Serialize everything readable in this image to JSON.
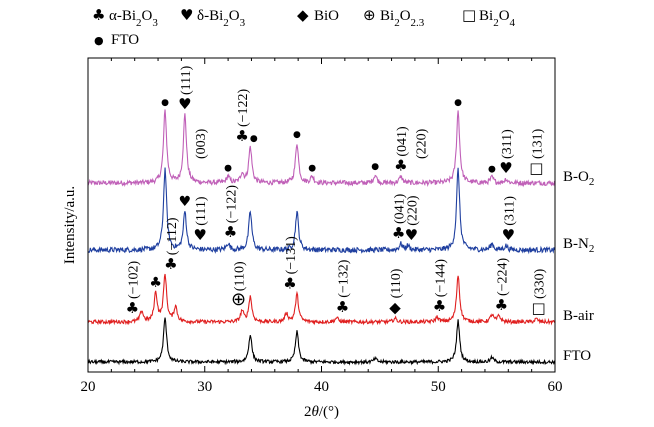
{
  "chart_data": {
    "type": "line",
    "xlabel": "2θ/(°)",
    "ylabel": "Intensity/a.u.",
    "xlim": [
      20,
      60
    ],
    "xticks": [
      20,
      30,
      40,
      50,
      60
    ],
    "grid": false,
    "legend": {
      "placement": "top",
      "items": [
        {
          "symbol": "♣",
          "label": "α-Bi₂O₃"
        },
        {
          "symbol": "♥",
          "label": "δ-Bi₂O₃"
        },
        {
          "symbol": "◆",
          "label": "BiO"
        },
        {
          "symbol": "⊕",
          "label": "Bi₂O₂.₃"
        },
        {
          "symbol": "□",
          "label": "Bi₂O₄"
        },
        {
          "symbol": "●",
          "label": "FTO"
        }
      ]
    },
    "series": [
      {
        "name": "B-O₂",
        "color": "#c060b8",
        "offset": 3.0,
        "peaks": [
          [
            26.6,
            0.9
          ],
          [
            28.3,
            0.85
          ],
          [
            32.0,
            0.08
          ],
          [
            33.2,
            0.12
          ],
          [
            33.9,
            0.45
          ],
          [
            37.9,
            0.5
          ],
          [
            39.2,
            0.08
          ],
          [
            44.6,
            0.1
          ],
          [
            46.8,
            0.08
          ],
          [
            51.7,
            0.9
          ],
          [
            54.6,
            0.07
          ],
          [
            55.8,
            0.05
          ]
        ]
      },
      {
        "name": "B-N₂",
        "color": "#2040a0",
        "offset": 2.0,
        "peaks": [
          [
            26.6,
            0.95
          ],
          [
            28.3,
            0.45
          ],
          [
            32.0,
            0.08
          ],
          [
            33.9,
            0.45
          ],
          [
            37.9,
            0.45
          ],
          [
            46.8,
            0.07
          ],
          [
            47.4,
            0.05
          ],
          [
            51.7,
            0.95
          ],
          [
            54.6,
            0.07
          ],
          [
            55.8,
            0.05
          ]
        ]
      },
      {
        "name": "B-air",
        "color": "#e02020",
        "offset": 1.0,
        "peaks": [
          [
            24.6,
            0.18
          ],
          [
            25.8,
            0.48
          ],
          [
            26.6,
            0.78
          ],
          [
            27.5,
            0.25
          ],
          [
            33.2,
            0.18
          ],
          [
            33.9,
            0.42
          ],
          [
            37.0,
            0.14
          ],
          [
            37.9,
            0.46
          ],
          [
            41.3,
            0.07
          ],
          [
            46.3,
            0.06
          ],
          [
            49.9,
            0.08
          ],
          [
            51.7,
            0.78
          ],
          [
            54.6,
            0.12
          ],
          [
            55.2,
            0.1
          ],
          [
            58.4,
            0.05
          ]
        ]
      },
      {
        "name": "FTO",
        "color": "#000000",
        "offset": 0.0,
        "peaks": [
          [
            26.6,
            0.8
          ],
          [
            33.9,
            0.5
          ],
          [
            37.9,
            0.55
          ],
          [
            44.6,
            0.06
          ],
          [
            51.7,
            0.75
          ],
          [
            54.6,
            0.08
          ]
        ]
      }
    ],
    "series_labels": [
      {
        "text": "B-O",
        "sub": "2",
        "series": 0
      },
      {
        "text": "B-N",
        "sub": "2",
        "series": 1
      },
      {
        "text": "B-air",
        "sub": "",
        "series": 2
      },
      {
        "text": "FTO",
        "sub": "",
        "series": 3
      }
    ],
    "annotations": [
      {
        "text": "(111)",
        "x": 28.3,
        "series": 0,
        "symbol": "♥"
      },
      {
        "text": "(003)",
        "x": 29.6,
        "series": 0,
        "symbol": ""
      },
      {
        "text": "(−122)",
        "x": 33.2,
        "series": 0,
        "symbol": "♣"
      },
      {
        "text": "(041)",
        "x": 46.8,
        "series": 0,
        "symbol": "♣"
      },
      {
        "text": "(220)",
        "x": 48.5,
        "series": 0,
        "symbol": ""
      },
      {
        "text": "(311)",
        "x": 55.8,
        "series": 0,
        "symbol": "♥"
      },
      {
        "text": "(131)",
        "x": 58.4,
        "series": 0,
        "symbol": "□"
      },
      {
        "text": "(111)",
        "x": 29.6,
        "series": 1,
        "symbol": "♥"
      },
      {
        "text": "(−122)",
        "x": 32.2,
        "series": 1,
        "symbol": "♣"
      },
      {
        "text": "(041)",
        "x": 46.6,
        "series": 1,
        "symbol": "♣"
      },
      {
        "text": "(220)",
        "x": 47.7,
        "series": 1,
        "symbol": "♥"
      },
      {
        "text": "(311)",
        "x": 56.0,
        "series": 1,
        "symbol": "♥"
      },
      {
        "text": "(−102)",
        "x": 23.8,
        "series": 2,
        "symbol": "♣"
      },
      {
        "text": "(−112)",
        "x": 27.1,
        "series": 2,
        "symbol": "♣"
      },
      {
        "text": "(110)",
        "x": 32.9,
        "series": 2,
        "symbol": "⊕"
      },
      {
        "text": "(−131)",
        "x": 37.3,
        "series": 2,
        "symbol": "♣"
      },
      {
        "text": "(−132)",
        "x": 41.8,
        "series": 2,
        "symbol": "♣"
      },
      {
        "text": "(110)",
        "x": 46.3,
        "series": 2,
        "symbol": "◆"
      },
      {
        "text": "(−144)",
        "x": 50.1,
        "series": 2,
        "symbol": "♣"
      },
      {
        "text": "(−224)",
        "x": 55.4,
        "series": 2,
        "symbol": "♣"
      },
      {
        "text": "(330)",
        "x": 58.6,
        "series": 2,
        "symbol": "□"
      }
    ]
  },
  "markers": [
    {
      "symbol": "●",
      "x": 26.6,
      "series": 0
    },
    {
      "symbol": "♥",
      "x": 28.3,
      "series": 0
    },
    {
      "symbol": "●",
      "x": 32.0,
      "series": 0
    },
    {
      "symbol": "●",
      "x": 34.2,
      "series": 0
    },
    {
      "symbol": "●",
      "x": 37.9,
      "series": 0
    },
    {
      "symbol": "●",
      "x": 39.2,
      "series": 0
    },
    {
      "symbol": "●",
      "x": 44.6,
      "series": 0
    },
    {
      "symbol": "●",
      "x": 51.7,
      "series": 0
    },
    {
      "symbol": "●",
      "x": 54.6,
      "series": 0
    },
    {
      "symbol": "♥",
      "x": 28.3,
      "series": 1
    },
    {
      "symbol": "♣",
      "x": 25.8,
      "series": 2
    }
  ],
  "colors": {
    "axis": "#000000",
    "text": "#000000"
  }
}
